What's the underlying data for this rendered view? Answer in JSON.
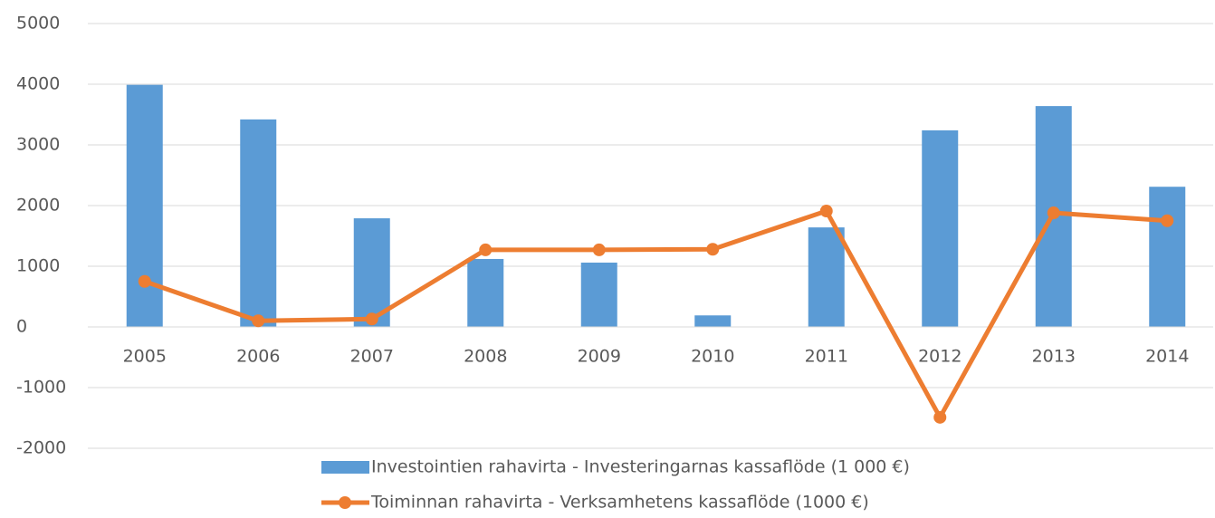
{
  "chart_data": {
    "type": "bar-line",
    "categories": [
      "2005",
      "2006",
      "2007",
      "2008",
      "2009",
      "2010",
      "2011",
      "2012",
      "2013",
      "2014"
    ],
    "series": [
      {
        "name": "Investointien rahavirta - Investeringarnas kassaflöde (1 000 €)",
        "type": "bar",
        "color": "#5b9bd5",
        "values": [
          3990,
          3420,
          1790,
          1120,
          1060,
          190,
          1640,
          3240,
          3640,
          2310
        ]
      },
      {
        "name": "Toiminnan rahavirta - Verksamhetens kassaflöde (1000 €)",
        "type": "line",
        "color": "#ed7d31",
        "values": [
          750,
          100,
          130,
          1270,
          1270,
          1280,
          1910,
          -1490,
          1880,
          1750
        ]
      }
    ],
    "ylim": [
      -2000,
      5000
    ],
    "yticks": [
      -2000,
      -1000,
      0,
      1000,
      2000,
      3000,
      4000,
      5000
    ],
    "grid": true,
    "legend": "bottom"
  }
}
